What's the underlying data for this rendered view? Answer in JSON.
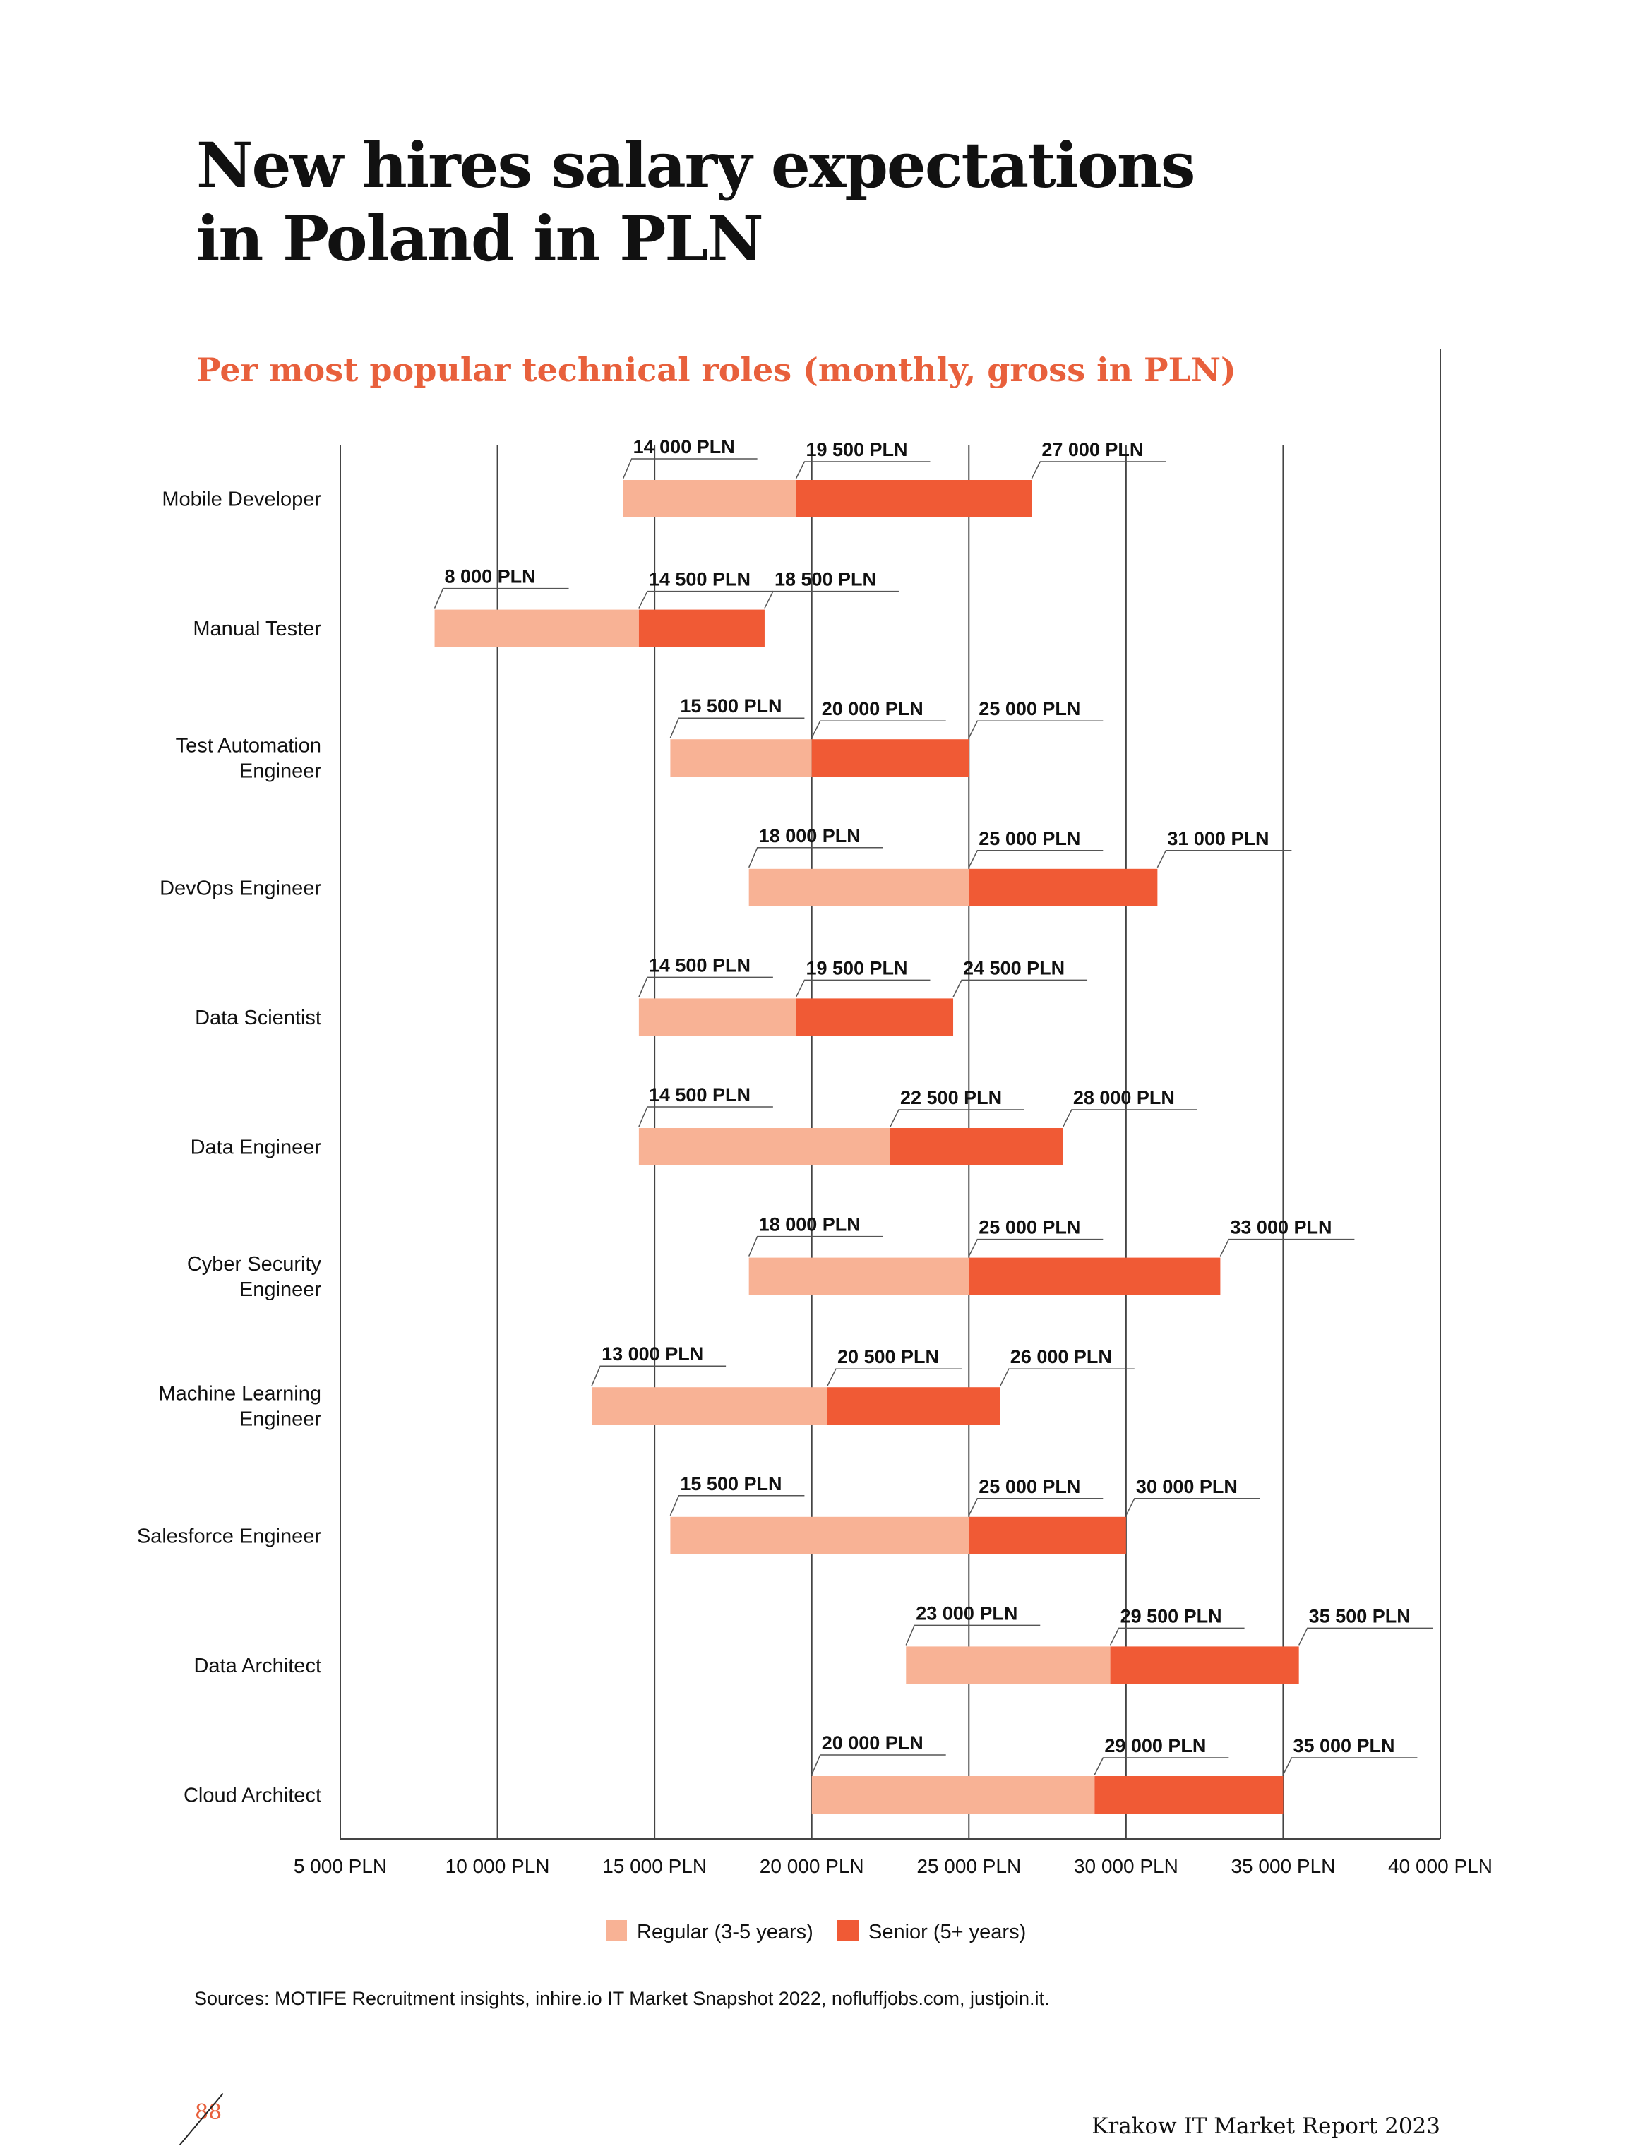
{
  "title_line1": "New hires salary expectations",
  "title_line2": "in Poland in PLN",
  "subtitle": "Per most popular technical roles (monthly, gross in PLN)",
  "sources": "Sources: MOTIFE Recruitment insights, inhire.io IT Market Snapshot 2022, nofluffjobs.com, justjoin.it.",
  "page_number": "88",
  "report_title": "Krakow IT Market Report 2023",
  "colors": {
    "regular": "#f8b295",
    "senior": "#f05a35",
    "accent": "#e8603c"
  },
  "chart_data": {
    "type": "bar",
    "orientation": "horizontal-stacked-range",
    "title": "New hires salary expectations in Poland in PLN",
    "subtitle": "Per most popular technical roles (monthly, gross in PLN)",
    "xlim": [
      5000,
      40000
    ],
    "x_ticks": [
      5000,
      10000,
      15000,
      20000,
      25000,
      30000,
      35000,
      40000
    ],
    "x_tick_labels": [
      "5 000 PLN",
      "10 000 PLN",
      "15 000 PLN",
      "20 000 PLN",
      "25 000 PLN",
      "30 000 PLN",
      "35 000 PLN",
      "40 000 PLN"
    ],
    "grid": true,
    "legend": {
      "position": "bottom-center",
      "entries": [
        {
          "name": "Regular (3-5 years)",
          "color": "#f8b295"
        },
        {
          "name": "Senior (5+ years)",
          "color": "#f05a35"
        }
      ]
    },
    "categories": [
      [
        "Mobile Developer"
      ],
      [
        "Manual Tester"
      ],
      [
        "Test Automation",
        "Engineer"
      ],
      [
        "DevOps Engineer"
      ],
      [
        "Data Scientist"
      ],
      [
        "Data Engineer"
      ],
      [
        "Cyber Security",
        "Engineer"
      ],
      [
        "Machine Learning",
        "Engineer"
      ],
      [
        "Salesforce Engineer"
      ],
      [
        "Data Architect"
      ],
      [
        "Cloud Architect"
      ]
    ],
    "series": [
      {
        "name": "Regular (3-5 years)",
        "start": [
          14000,
          8000,
          15500,
          18000,
          14500,
          14500,
          18000,
          13000,
          15500,
          23000,
          20000
        ],
        "end": [
          19500,
          14500,
          20000,
          25000,
          19500,
          22500,
          25000,
          20500,
          25000,
          29500,
          29000
        ]
      },
      {
        "name": "Senior (5+ years)",
        "start": [
          19500,
          14500,
          20000,
          25000,
          19500,
          22500,
          25000,
          20500,
          25000,
          29500,
          29000
        ],
        "end": [
          27000,
          18500,
          25000,
          31000,
          24500,
          28000,
          33000,
          26000,
          30000,
          35500,
          35000
        ]
      }
    ],
    "data_labels": [
      [
        "14 000 PLN",
        "19 500 PLN",
        "27 000 PLN"
      ],
      [
        "8 000 PLN",
        "14 500 PLN",
        "18 500 PLN"
      ],
      [
        "15 500 PLN",
        "20 000 PLN",
        "25 000 PLN"
      ],
      [
        "18 000 PLN",
        "25 000 PLN",
        "31 000 PLN"
      ],
      [
        "14 500 PLN",
        "19 500 PLN",
        "24 500 PLN"
      ],
      [
        "14 500 PLN",
        "22 500 PLN",
        "28 000 PLN"
      ],
      [
        "18 000 PLN",
        "25 000 PLN",
        "33 000 PLN"
      ],
      [
        "13 000 PLN",
        "20 500 PLN",
        "26 000 PLN"
      ],
      [
        "15 500 PLN",
        "25 000 PLN",
        "30 000 PLN"
      ],
      [
        "23 000 PLN",
        "29 500 PLN",
        "35 500 PLN"
      ],
      [
        "20 000 PLN",
        "29 000 PLN",
        "35 000 PLN"
      ]
    ]
  }
}
